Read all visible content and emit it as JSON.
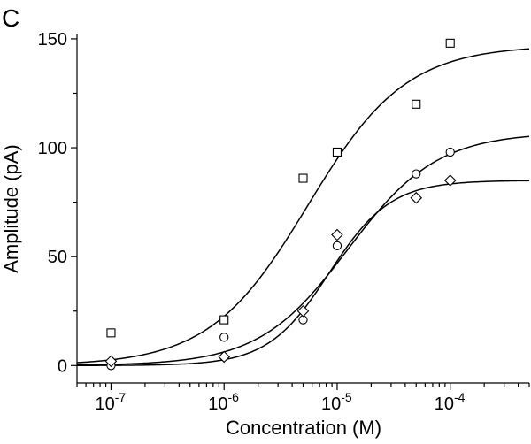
{
  "chart_data": {
    "type": "scatter",
    "panel_label": "C",
    "xlabel": "Concentration (M)",
    "ylabel": "Amplitude (pA)",
    "xscale": "log",
    "xlim": [
      5e-08,
      0.0005
    ],
    "ylim": [
      -8,
      152
    ],
    "y_ticks": [
      0,
      50,
      100,
      150
    ],
    "y_tick_labels": [
      "0",
      "50",
      "100",
      "150"
    ],
    "x_major_ticks": [
      1e-07,
      1e-06,
      1e-05,
      0.0001
    ],
    "x_tick_labels": [
      {
        "base": "10",
        "exp": "-7"
      },
      {
        "base": "10",
        "exp": "-6"
      },
      {
        "base": "10",
        "exp": "-5"
      },
      {
        "base": "10",
        "exp": "-4"
      }
    ],
    "series": [
      {
        "name": "squares",
        "marker": "square",
        "points": [
          [
            1e-07,
            15
          ],
          [
            1e-06,
            21
          ],
          [
            5e-06,
            86
          ],
          [
            1e-05,
            98
          ],
          [
            5e-05,
            120
          ],
          [
            0.0001,
            148
          ]
        ],
        "fit": {
          "top": 147,
          "ec50": 5.5e-06,
          "hill": 1.0
        }
      },
      {
        "name": "circles",
        "marker": "circle",
        "points": [
          [
            1e-07,
            0
          ],
          [
            1e-06,
            13
          ],
          [
            5e-06,
            21
          ],
          [
            1e-05,
            55
          ],
          [
            5e-05,
            88
          ],
          [
            0.0001,
            98
          ]
        ],
        "fit": {
          "top": 107,
          "ec50": 1.25e-05,
          "hill": 1.1
        }
      },
      {
        "name": "diamonds",
        "marker": "diamond",
        "points": [
          [
            1e-07,
            2
          ],
          [
            1e-06,
            4
          ],
          [
            5e-06,
            25
          ],
          [
            1e-05,
            60
          ],
          [
            5e-05,
            77
          ],
          [
            0.0001,
            85
          ]
        ],
        "fit": {
          "top": 85,
          "ec50": 8.5e-06,
          "hill": 1.6
        }
      }
    ]
  }
}
